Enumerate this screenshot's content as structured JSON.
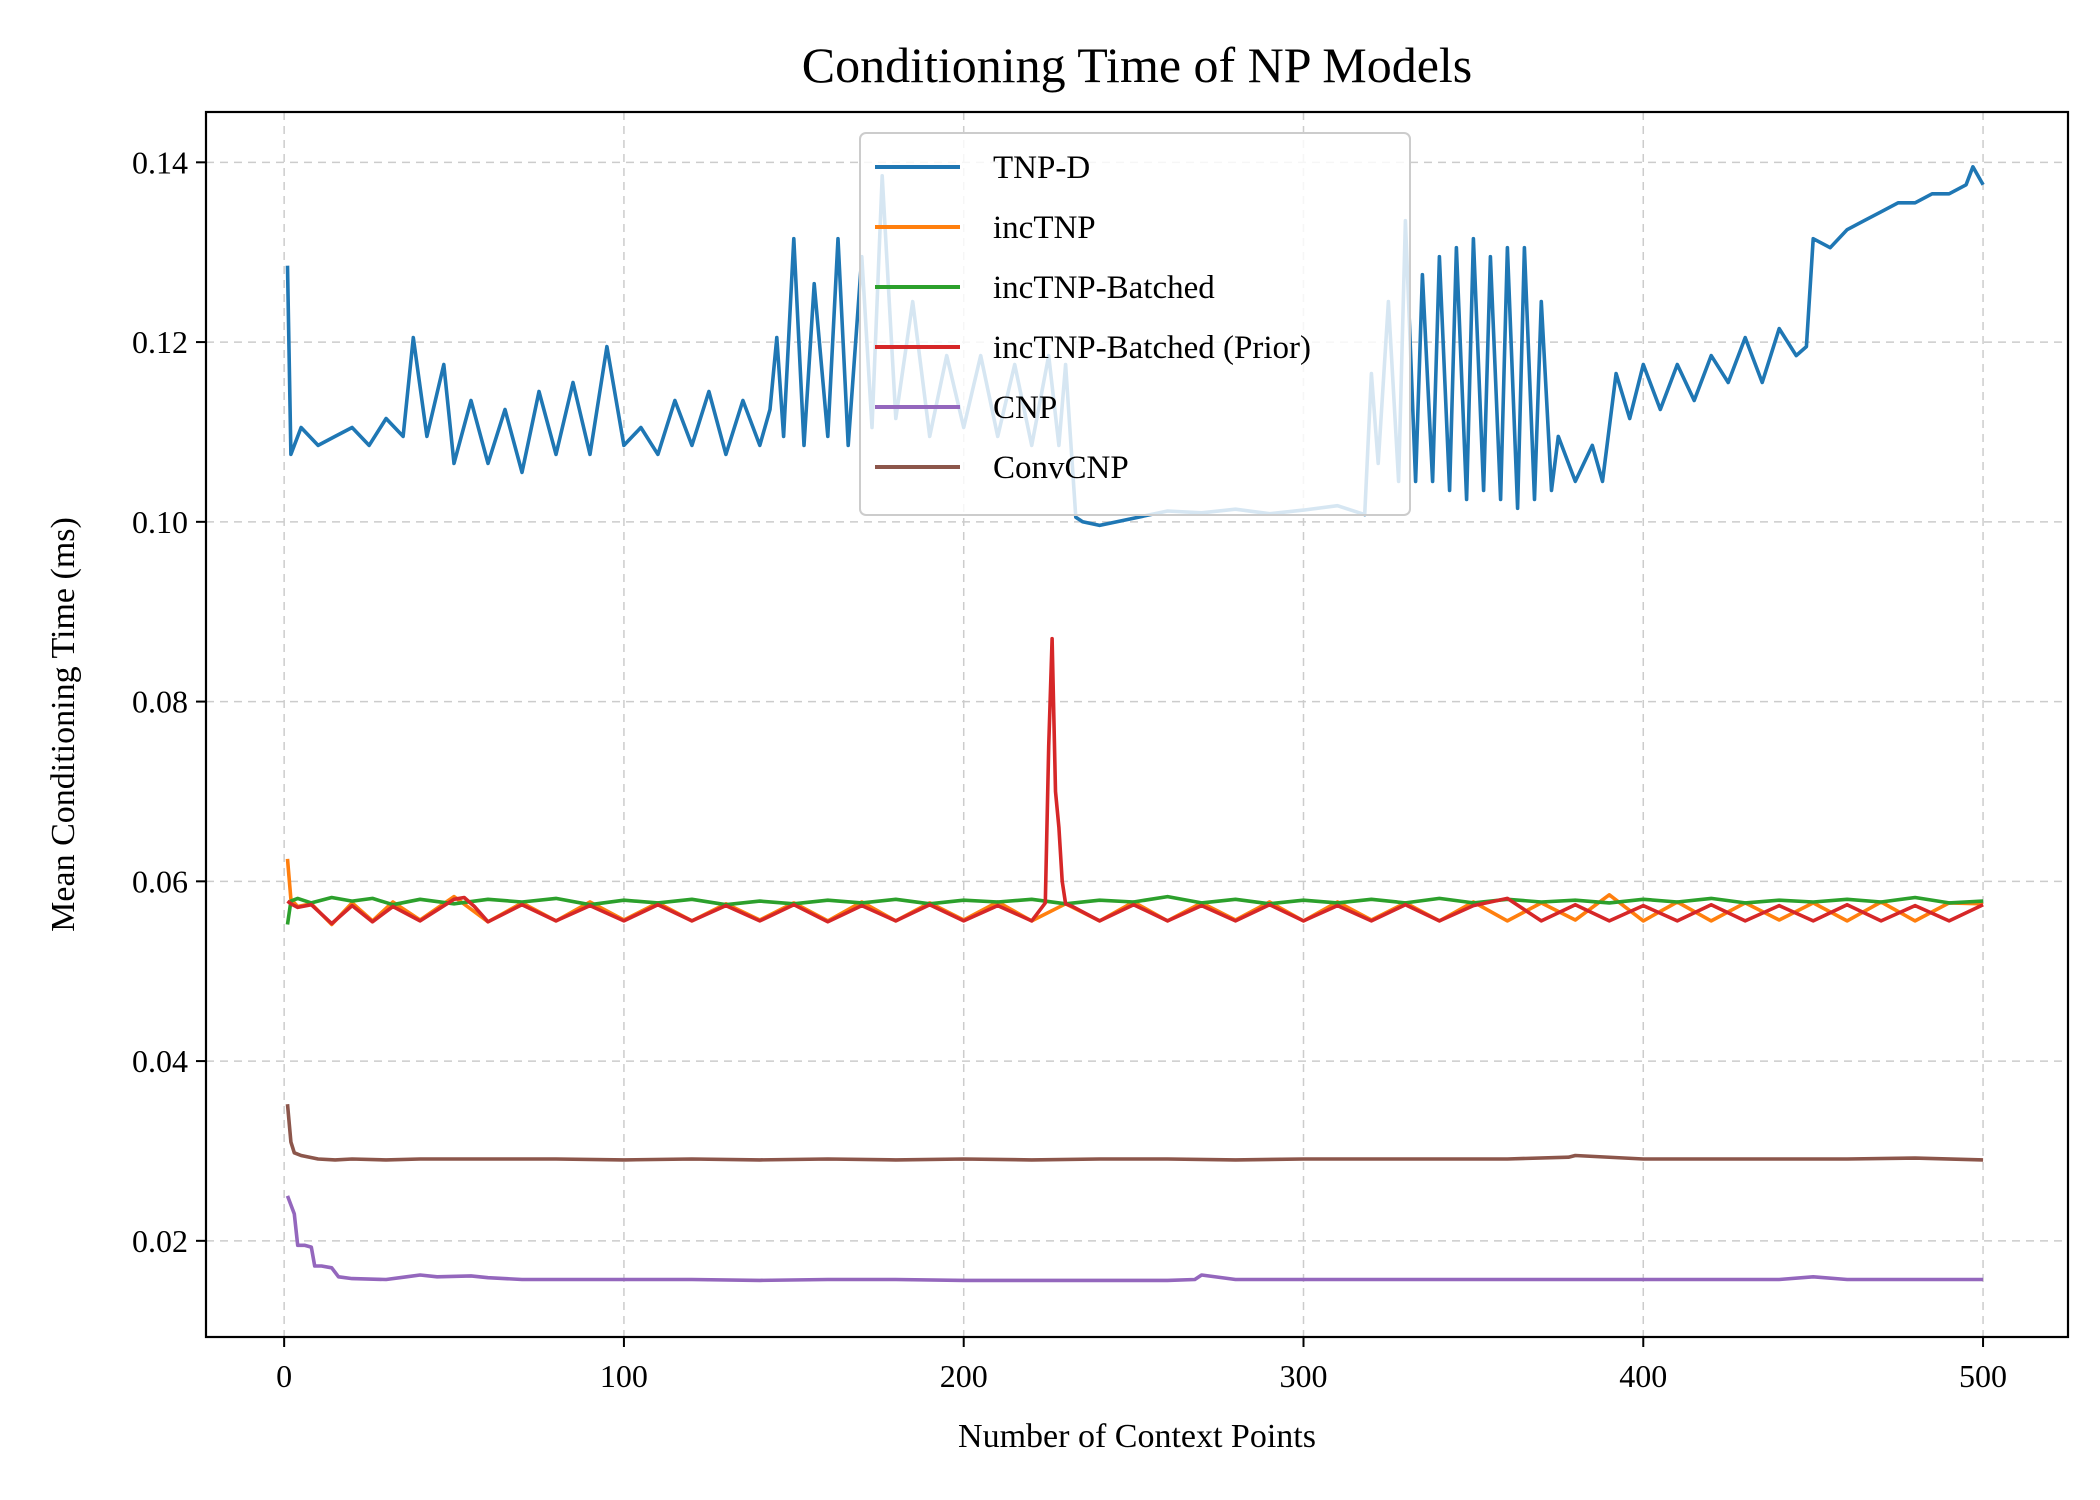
{
  "chart_data": {
    "type": "line",
    "title": "Conditioning Time of NP Models",
    "xlabel": "Number of Context Points",
    "ylabel": "Mean Conditioning Time (ms)",
    "xlim": [
      -23,
      525
    ],
    "ylim": [
      0.0093,
      0.1456
    ],
    "xticks": [
      0,
      100,
      200,
      300,
      400,
      500
    ],
    "xtick_labels": [
      "0",
      "100",
      "200",
      "300",
      "400",
      "500"
    ],
    "yticks": [
      0.02,
      0.04,
      0.06,
      0.08,
      0.1,
      0.12,
      0.14
    ],
    "ytick_labels": [
      "0.02",
      "0.04",
      "0.06",
      "0.08",
      "0.10",
      "0.12",
      "0.14"
    ],
    "grid": true,
    "legend_position": "upper-center",
    "series": [
      {
        "name": "TNP-D",
        "color": "#1f77b4",
        "x": [
          1,
          2,
          5,
          10,
          15,
          20,
          25,
          30,
          35,
          38,
          42,
          47,
          50,
          55,
          60,
          65,
          70,
          75,
          80,
          85,
          90,
          95,
          100,
          105,
          110,
          115,
          120,
          125,
          130,
          135,
          140,
          143,
          145,
          147,
          150,
          153,
          156,
          160,
          163,
          166,
          170,
          173,
          176,
          180,
          185,
          190,
          195,
          200,
          205,
          210,
          215,
          220,
          225,
          228,
          230,
          233,
          235,
          240,
          250,
          260,
          270,
          280,
          290,
          300,
          310,
          318,
          320,
          322,
          325,
          328,
          330,
          333,
          335,
          338,
          340,
          343,
          345,
          348,
          350,
          353,
          355,
          358,
          360,
          363,
          365,
          368,
          370,
          373,
          375,
          380,
          385,
          388,
          392,
          396,
          400,
          405,
          410,
          415,
          420,
          425,
          430,
          435,
          440,
          445,
          448,
          450,
          455,
          460,
          465,
          470,
          475,
          480,
          485,
          490,
          495,
          497,
          500
        ],
        "y": [
          0.1285,
          0.1075,
          0.1105,
          0.1085,
          0.1095,
          0.1105,
          0.1085,
          0.1115,
          0.1095,
          0.1205,
          0.1095,
          0.1175,
          0.1065,
          0.1135,
          0.1065,
          0.1125,
          0.1055,
          0.1145,
          0.1075,
          0.1155,
          0.1075,
          0.1195,
          0.1085,
          0.1105,
          0.1075,
          0.1135,
          0.1085,
          0.1145,
          0.1075,
          0.1135,
          0.1085,
          0.1125,
          0.1205,
          0.1095,
          0.1315,
          0.1085,
          0.1265,
          0.1095,
          0.1315,
          0.1085,
          0.1295,
          0.1105,
          0.1385,
          0.1115,
          0.1245,
          0.1095,
          0.1185,
          0.1105,
          0.1185,
          0.1095,
          0.1175,
          0.1085,
          0.1185,
          0.1085,
          0.1175,
          0.1005,
          0.1,
          0.0996,
          0.1004,
          0.1012,
          0.101,
          0.1014,
          0.1009,
          0.1013,
          0.1018,
          0.1008,
          0.1165,
          0.1065,
          0.1245,
          0.1045,
          0.1335,
          0.1045,
          0.1275,
          0.1045,
          0.1295,
          0.1035,
          0.1305,
          0.1025,
          0.1315,
          0.1035,
          0.1295,
          0.1025,
          0.1305,
          0.1015,
          0.1305,
          0.1025,
          0.1245,
          0.1035,
          0.1095,
          0.1045,
          0.1085,
          0.1045,
          0.1165,
          0.1115,
          0.1175,
          0.1125,
          0.1175,
          0.1135,
          0.1185,
          0.1155,
          0.1205,
          0.1155,
          0.1215,
          0.1185,
          0.1195,
          0.1315,
          0.1305,
          0.1325,
          0.1335,
          0.1345,
          0.1355,
          0.1355,
          0.1365,
          0.1365,
          0.1375,
          0.1395,
          0.1375
        ]
      },
      {
        "name": "incTNP",
        "color": "#ff7f0e",
        "x": [
          1,
          2,
          4,
          8,
          14,
          20,
          26,
          32,
          40,
          50,
          60,
          70,
          80,
          90,
          100,
          110,
          120,
          130,
          140,
          150,
          160,
          170,
          180,
          190,
          200,
          210,
          220,
          230,
          240,
          250,
          260,
          270,
          280,
          290,
          300,
          310,
          320,
          330,
          340,
          350,
          360,
          370,
          380,
          390,
          400,
          410,
          420,
          430,
          440,
          450,
          460,
          470,
          480,
          490,
          500
        ],
        "y": [
          0.0625,
          0.058,
          0.0572,
          0.0575,
          0.0552,
          0.0576,
          0.0556,
          0.0577,
          0.0557,
          0.0583,
          0.0555,
          0.0576,
          0.0556,
          0.0577,
          0.0557,
          0.0576,
          0.0556,
          0.0575,
          0.0557,
          0.0576,
          0.0556,
          0.0577,
          0.0556,
          0.0576,
          0.0557,
          0.0577,
          0.0556,
          0.0575,
          0.0556,
          0.0577,
          0.0556,
          0.0576,
          0.0557,
          0.0577,
          0.0556,
          0.0577,
          0.0557,
          0.0576,
          0.0556,
          0.0577,
          0.0556,
          0.0576,
          0.0557,
          0.0585,
          0.0556,
          0.0577,
          0.0556,
          0.0576,
          0.0557,
          0.0576,
          0.0556,
          0.0577,
          0.0556,
          0.0576,
          0.0575
        ]
      },
      {
        "name": "incTNP-Batched",
        "color": "#2ca02c",
        "x": [
          1,
          2,
          4,
          8,
          14,
          20,
          26,
          32,
          40,
          50,
          60,
          70,
          80,
          90,
          100,
          110,
          120,
          130,
          140,
          150,
          160,
          170,
          180,
          190,
          200,
          210,
          220,
          230,
          240,
          250,
          260,
          270,
          280,
          290,
          300,
          310,
          320,
          330,
          340,
          350,
          360,
          370,
          380,
          390,
          400,
          410,
          420,
          430,
          440,
          450,
          460,
          470,
          480,
          490,
          500
        ],
        "y": [
          0.0552,
          0.0578,
          0.0581,
          0.0576,
          0.0582,
          0.0578,
          0.0581,
          0.0574,
          0.058,
          0.0575,
          0.058,
          0.0577,
          0.0581,
          0.0574,
          0.0579,
          0.0576,
          0.058,
          0.0574,
          0.0578,
          0.0575,
          0.0579,
          0.0576,
          0.058,
          0.0575,
          0.0579,
          0.0577,
          0.058,
          0.0575,
          0.0579,
          0.0577,
          0.0583,
          0.0576,
          0.058,
          0.0575,
          0.0579,
          0.0576,
          0.058,
          0.0576,
          0.0581,
          0.0576,
          0.058,
          0.0577,
          0.0579,
          0.0576,
          0.058,
          0.0577,
          0.0581,
          0.0576,
          0.0579,
          0.0577,
          0.058,
          0.0577,
          0.0582,
          0.0576,
          0.0578
        ]
      },
      {
        "name": "incTNP-Batched (Prior)",
        "color": "#d62728",
        "x": [
          1,
          2,
          4,
          8,
          14,
          20,
          26,
          32,
          40,
          50,
          53,
          56,
          60,
          70,
          80,
          90,
          100,
          110,
          120,
          130,
          140,
          150,
          160,
          170,
          180,
          190,
          200,
          210,
          220,
          224,
          225,
          226,
          227,
          228,
          229,
          230,
          232,
          240,
          250,
          260,
          270,
          280,
          290,
          300,
          310,
          320,
          330,
          340,
          350,
          360,
          370,
          380,
          390,
          400,
          410,
          420,
          430,
          440,
          450,
          460,
          470,
          480,
          490,
          500
        ],
        "y": [
          0.0578,
          0.0575,
          0.0571,
          0.0574,
          0.0553,
          0.0573,
          0.0555,
          0.0572,
          0.0556,
          0.058,
          0.0582,
          0.0572,
          0.0555,
          0.0574,
          0.0556,
          0.0573,
          0.0556,
          0.0574,
          0.0556,
          0.0573,
          0.0556,
          0.0574,
          0.0555,
          0.0573,
          0.0556,
          0.0574,
          0.0556,
          0.0573,
          0.0556,
          0.0576,
          0.075,
          0.087,
          0.07,
          0.066,
          0.06,
          0.0575,
          0.0572,
          0.0556,
          0.0574,
          0.0556,
          0.0573,
          0.0556,
          0.0574,
          0.0556,
          0.0573,
          0.0556,
          0.0574,
          0.0556,
          0.0573,
          0.0581,
          0.0556,
          0.0574,
          0.0556,
          0.0573,
          0.0556,
          0.0574,
          0.0556,
          0.0573,
          0.0556,
          0.0574,
          0.0556,
          0.0573,
          0.0556,
          0.0574
        ]
      },
      {
        "name": "CNP",
        "color": "#9467bd",
        "x": [
          1,
          3,
          4,
          6,
          8,
          9,
          11,
          14,
          16,
          20,
          30,
          36,
          40,
          45,
          55,
          60,
          70,
          80,
          100,
          120,
          140,
          160,
          180,
          200,
          220,
          240,
          260,
          268,
          270,
          280,
          300,
          320,
          340,
          360,
          380,
          400,
          420,
          440,
          450,
          460,
          480,
          500
        ],
        "y": [
          0.025,
          0.023,
          0.0195,
          0.0195,
          0.0193,
          0.0172,
          0.0172,
          0.017,
          0.016,
          0.0158,
          0.0157,
          0.016,
          0.0162,
          0.016,
          0.0161,
          0.0159,
          0.0157,
          0.0157,
          0.0157,
          0.0157,
          0.0156,
          0.0157,
          0.0157,
          0.0156,
          0.0156,
          0.0156,
          0.0156,
          0.0157,
          0.0162,
          0.0157,
          0.0157,
          0.0157,
          0.0157,
          0.0157,
          0.0157,
          0.0157,
          0.0157,
          0.0157,
          0.016,
          0.0157,
          0.0157,
          0.0157
        ]
      },
      {
        "name": "ConvCNP",
        "color": "#8c564b",
        "x": [
          1,
          2,
          3,
          5,
          10,
          15,
          20,
          30,
          40,
          60,
          80,
          100,
          120,
          140,
          160,
          180,
          200,
          220,
          240,
          260,
          280,
          300,
          320,
          340,
          360,
          378,
          380,
          400,
          420,
          440,
          460,
          480,
          500
        ],
        "y": [
          0.0352,
          0.031,
          0.0298,
          0.0295,
          0.0291,
          0.029,
          0.0291,
          0.029,
          0.0291,
          0.0291,
          0.0291,
          0.029,
          0.0291,
          0.029,
          0.0291,
          0.029,
          0.0291,
          0.029,
          0.0291,
          0.0291,
          0.029,
          0.0291,
          0.0291,
          0.0291,
          0.0291,
          0.0293,
          0.0295,
          0.0291,
          0.0291,
          0.0291,
          0.0291,
          0.0292,
          0.029
        ]
      }
    ]
  }
}
